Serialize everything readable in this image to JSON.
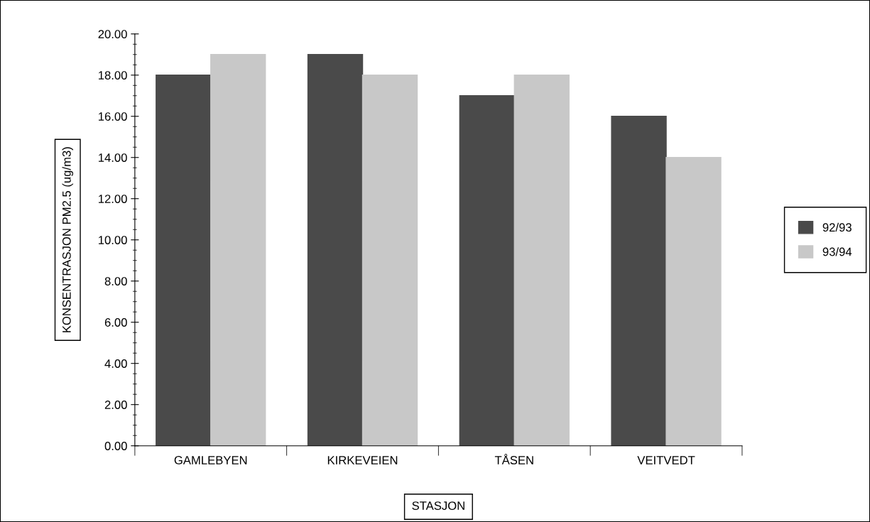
{
  "chart_data": {
    "type": "bar",
    "xlabel": "STASJON",
    "ylabel": "KONSENTRASJON PM2.5 (ug/m3)",
    "categories": [
      "GAMLEBYEN",
      "KIRKEVEIEN",
      "TÅSEN",
      "VEITVEDT"
    ],
    "series": [
      {
        "name": "92/93",
        "color": "#4a4a4a",
        "values": [
          18,
          19,
          17,
          16
        ]
      },
      {
        "name": "93/94",
        "color": "#c8c8c8",
        "values": [
          19,
          18,
          18,
          14
        ]
      }
    ],
    "ylim": [
      0,
      20
    ],
    "yticks": [
      {
        "value": 0,
        "label": "0.00"
      },
      {
        "value": 2,
        "label": "2.00"
      },
      {
        "value": 4,
        "label": "4.00"
      },
      {
        "value": 6,
        "label": "6.00"
      },
      {
        "value": 8,
        "label": "8.00"
      },
      {
        "value": 10,
        "label": "10.00"
      },
      {
        "value": 12,
        "label": "12.00"
      },
      {
        "value": 14,
        "label": "14.00"
      },
      {
        "value": 16,
        "label": "16.00"
      },
      {
        "value": 18,
        "label": "18.00"
      },
      {
        "value": 20,
        "label": "20.00"
      }
    ],
    "grid": false,
    "legend": "right"
  }
}
